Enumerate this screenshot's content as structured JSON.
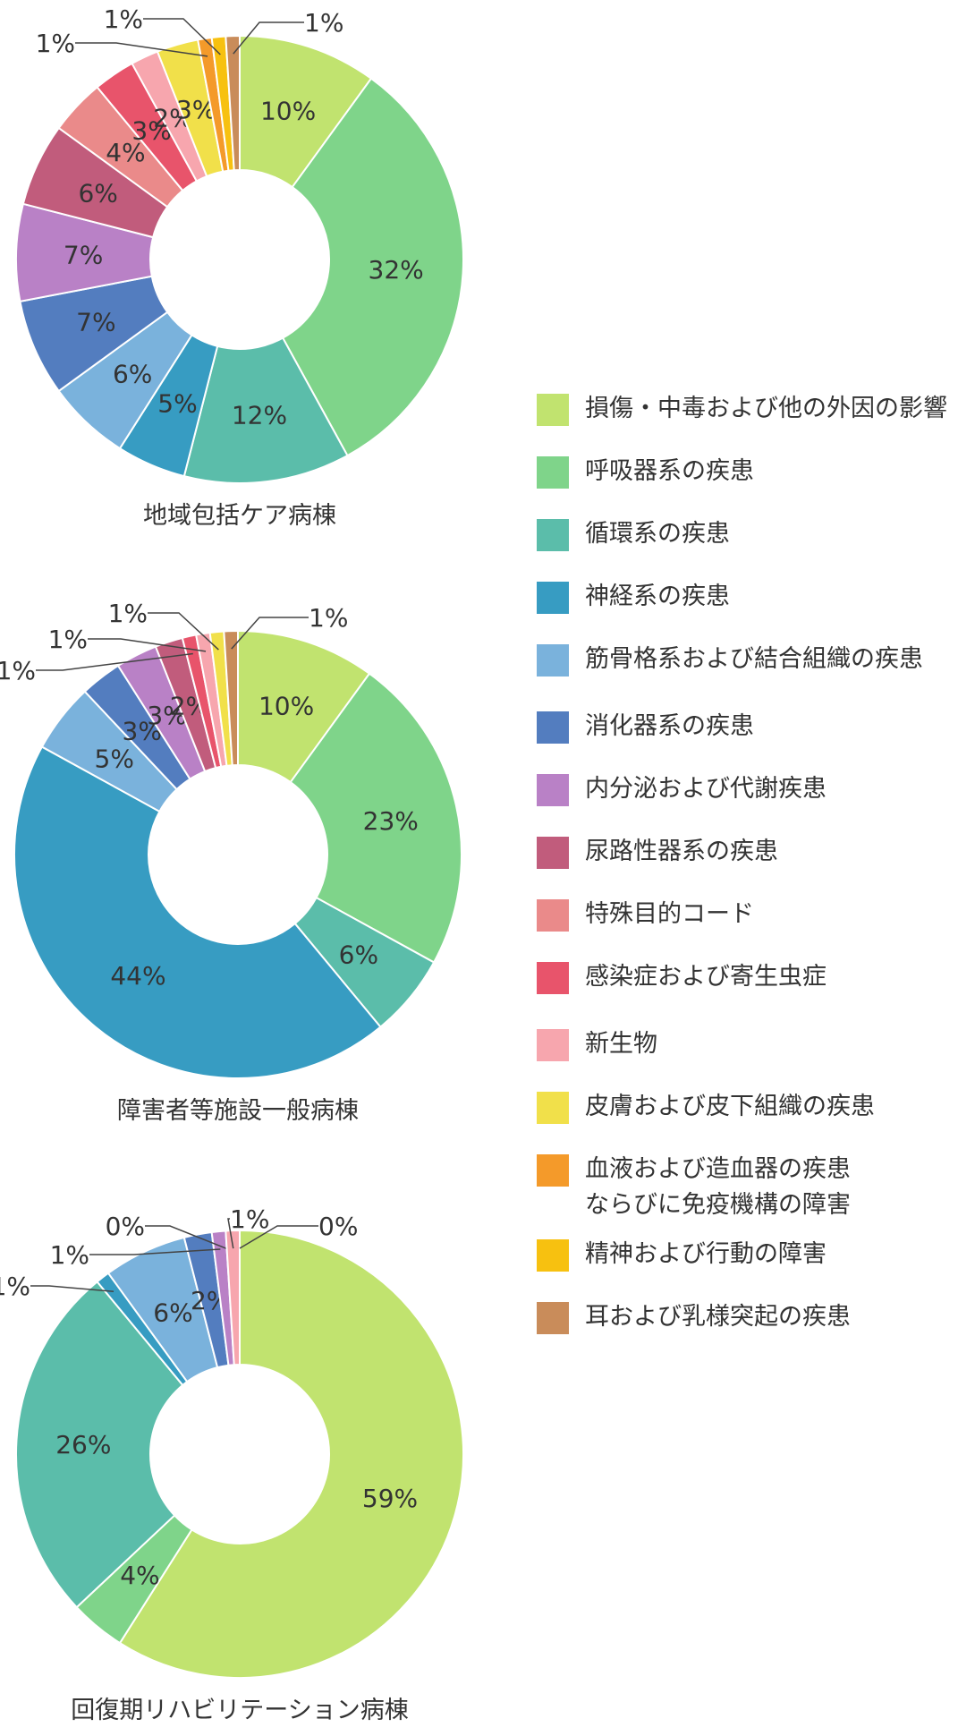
{
  "colors": {
    "injury": "#c1e36f",
    "respiratory": "#7fd48a",
    "circulatory": "#5bbdaa",
    "nervous": "#379cc2",
    "musculoskeletal": "#7ab2dc",
    "digestive": "#537dbf",
    "endocrine": "#b981c6",
    "genitourinary": "#c15c7c",
    "special": "#ea8a8a",
    "infectious": "#e8546b",
    "neoplasm": "#f7a6ae",
    "skin": "#f1e04a",
    "blood": "#f49a2a",
    "mental": "#f7c110",
    "ear": "#c98c5a"
  },
  "legend": [
    {
      "key": "injury",
      "label": "損傷・中毒および他の外因の影響"
    },
    {
      "key": "respiratory",
      "label": "呼吸器系の疾患"
    },
    {
      "key": "circulatory",
      "label": "循環系の疾患"
    },
    {
      "key": "nervous",
      "label": "神経系の疾患"
    },
    {
      "key": "musculoskeletal",
      "label": "筋骨格系および結合組織の疾患"
    },
    {
      "key": "digestive",
      "label": "消化器系の疾患"
    },
    {
      "key": "endocrine",
      "label": "内分泌および代謝疾患"
    },
    {
      "key": "genitourinary",
      "label": "尿路性器系の疾患"
    },
    {
      "key": "special",
      "label": "特殊目的コード"
    },
    {
      "key": "infectious",
      "label": "感染症および寄生虫症"
    },
    {
      "key": "neoplasm",
      "label": "新生物"
    },
    {
      "key": "skin",
      "label": "皮膚および皮下組織の疾患"
    },
    {
      "key": "blood",
      "label": "血液および造血器の疾患",
      "label2": "ならびに免疫機構の障害"
    },
    {
      "key": "mental",
      "label": "精神および行動の障害"
    },
    {
      "key": "ear",
      "label": "耳および乳様突起の疾患"
    }
  ],
  "chart_data": [
    {
      "type": "pie",
      "title": "地域包括ケア病棟",
      "slices": [
        {
          "key": "injury",
          "value": 10,
          "label": "10%"
        },
        {
          "key": "respiratory",
          "value": 32,
          "label": "32%"
        },
        {
          "key": "circulatory",
          "value": 12,
          "label": "12%"
        },
        {
          "key": "nervous",
          "value": 5,
          "label": "5%"
        },
        {
          "key": "musculoskeletal",
          "value": 6,
          "label": "6%"
        },
        {
          "key": "digestive",
          "value": 7,
          "label": "7%"
        },
        {
          "key": "endocrine",
          "value": 7,
          "label": "7%"
        },
        {
          "key": "genitourinary",
          "value": 6,
          "label": "6%"
        },
        {
          "key": "special",
          "value": 4,
          "label": "4%"
        },
        {
          "key": "infectious",
          "value": 3,
          "label": "3%"
        },
        {
          "key": "neoplasm",
          "value": 2,
          "label": "2%"
        },
        {
          "key": "skin",
          "value": 3,
          "label": "3%"
        },
        {
          "key": "blood",
          "value": 1,
          "label": "1%"
        },
        {
          "key": "mental",
          "value": 1,
          "label": "1%"
        },
        {
          "key": "ear",
          "value": 1,
          "label": "1%"
        }
      ]
    },
    {
      "type": "pie",
      "title": "障害者等施設一般病棟",
      "slices": [
        {
          "key": "injury",
          "value": 10,
          "label": "10%"
        },
        {
          "key": "respiratory",
          "value": 23,
          "label": "23%"
        },
        {
          "key": "circulatory",
          "value": 6,
          "label": "6%"
        },
        {
          "key": "nervous",
          "value": 44,
          "label": "44%"
        },
        {
          "key": "musculoskeletal",
          "value": 5,
          "label": "5%"
        },
        {
          "key": "digestive",
          "value": 3,
          "label": "3%"
        },
        {
          "key": "endocrine",
          "value": 3,
          "label": "3%"
        },
        {
          "key": "genitourinary",
          "value": 2,
          "label": "2%"
        },
        {
          "key": "infectious",
          "value": 1,
          "label": "1%"
        },
        {
          "key": "neoplasm",
          "value": 1,
          "label": "1%"
        },
        {
          "key": "skin",
          "value": 1,
          "label": "1%"
        },
        {
          "key": "ear",
          "value": 1,
          "label": "1%"
        }
      ]
    },
    {
      "type": "pie",
      "title": "回復期リハビリテーション病棟",
      "slices": [
        {
          "key": "injury",
          "value": 59,
          "label": "59%"
        },
        {
          "key": "respiratory",
          "value": 4,
          "label": "4%"
        },
        {
          "key": "circulatory",
          "value": 26,
          "label": "26%"
        },
        {
          "key": "nervous",
          "value": 1,
          "label": "1%"
        },
        {
          "key": "musculoskeletal",
          "value": 6,
          "label": "6%"
        },
        {
          "key": "digestive",
          "value": 2,
          "label": "2%"
        },
        {
          "key": "endocrine",
          "value": 1,
          "label": "1%"
        },
        {
          "key": "genitourinary",
          "value": 0,
          "label": "0%"
        },
        {
          "key": "neoplasm",
          "value": 1,
          "label": "1%"
        },
        {
          "key": "special",
          "value": 0,
          "label": "0%"
        }
      ]
    }
  ]
}
